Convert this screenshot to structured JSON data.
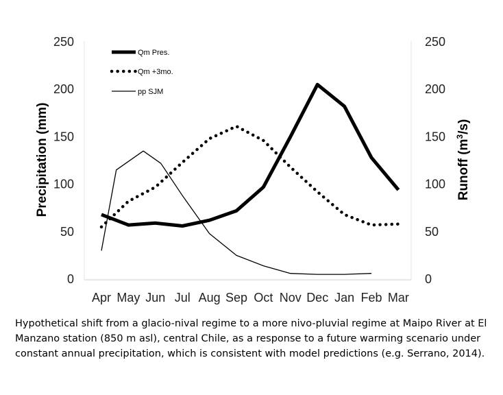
{
  "chart_data": {
    "type": "line",
    "categories": [
      "Apr",
      "May",
      "Jun",
      "Jul",
      "Aug",
      "Sep",
      "Oct",
      "Nov",
      "Dec",
      "Jan",
      "Feb",
      "Mar"
    ],
    "left_axis": {
      "label": "Precipitation (mm)",
      "range": [
        0,
        250
      ],
      "ticks": [
        "0",
        "50",
        "100",
        "150",
        "200",
        "250"
      ]
    },
    "right_axis": {
      "label_prefix": "Runoff (m",
      "label_sup": "3",
      "label_suffix": "/s)",
      "range": [
        0,
        250
      ],
      "ticks": [
        "0",
        "50",
        "100",
        "150",
        "200",
        "250"
      ]
    },
    "series": [
      {
        "name": "Qm Pres.",
        "style": "thick-solid",
        "axis": "right",
        "values": [
          68,
          57,
          59,
          56,
          62,
          72,
          97,
          150,
          205,
          182,
          128,
          94
        ]
      },
      {
        "name": "Qm +3mo.",
        "style": "dotted",
        "axis": "right",
        "values": [
          55,
          82,
          97,
          123,
          148,
          161,
          146,
          118,
          92,
          68,
          57,
          58
        ]
      },
      {
        "name": "pp SJM",
        "style": "thin-solid",
        "axis": "left",
        "x_offsets": [
          0,
          0.55,
          1.55,
          2.2,
          3,
          4,
          5,
          6,
          7,
          8,
          9,
          10
        ],
        "values": [
          30,
          115,
          135,
          122,
          88,
          48,
          25,
          14,
          6,
          5,
          5,
          6
        ]
      }
    ],
    "legend": "top-left",
    "grid": false
  },
  "caption": "Hypothetical shift from a glacio-nival regime to a more nivo-pluvial regime at Maipo River at El Manzano station (850 m asl), central Chile, as a response to a future warming scenario under constant annual precipitation, which is consistent with model predictions (e.g. Serrano, 2014)."
}
